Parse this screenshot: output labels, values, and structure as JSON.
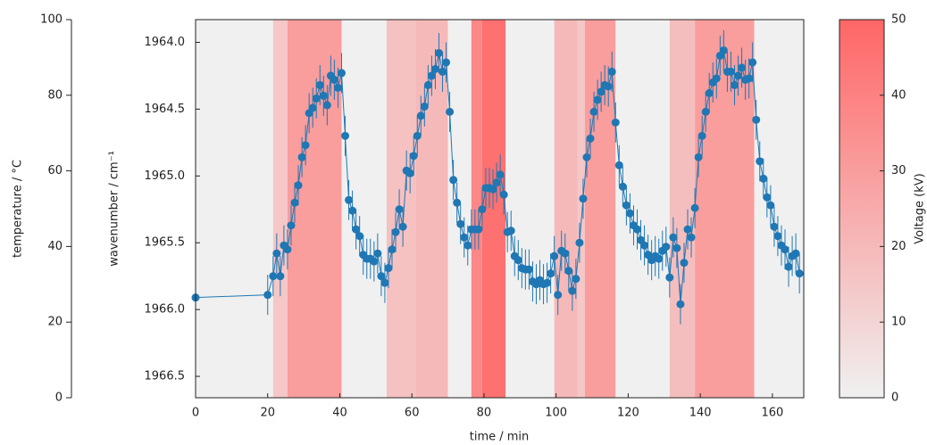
{
  "chart_data": {
    "type": "scatter",
    "xlabel": "time / min",
    "ylabel": "wavenumber / cm⁻¹",
    "xlim": [
      0,
      168.7
    ],
    "xticks": [
      0,
      20,
      40,
      60,
      80,
      100,
      120,
      140,
      160
    ],
    "ylim": [
      1963.83,
      1966.66
    ],
    "y_inverted": true,
    "yticks": [
      {
        "value": 1964,
        "label": "1964.0"
      },
      1964.5,
      {
        "value": 1965,
        "label": "1965.0"
      },
      1965.5,
      {
        "value": 1966,
        "label": "1966.0"
      },
      1966.5
    ],
    "temperature_axis": {
      "label": "temperature / °C",
      "lim": [
        0,
        100
      ],
      "ticks": [
        0,
        20,
        40,
        60,
        80,
        100
      ]
    },
    "colorbar": {
      "label": "Voltage (kV)",
      "lim": [
        0,
        50
      ],
      "ticks": [
        0,
        10,
        20,
        30,
        40,
        50
      ],
      "colors": [
        "#f0f0f0",
        "#ff6666"
      ]
    },
    "bands": [
      {
        "start": 0,
        "end": 21.5,
        "voltage": 0
      },
      {
        "start": 21.5,
        "end": 25.5,
        "voltage": 15
      },
      {
        "start": 25.5,
        "end": 40.5,
        "voltage": 30
      },
      {
        "start": 40.5,
        "end": 53,
        "voltage": 0
      },
      {
        "start": 53,
        "end": 61,
        "voltage": 17
      },
      {
        "start": 61,
        "end": 70,
        "voltage": 20
      },
      {
        "start": 70,
        "end": 76.5,
        "voltage": 0
      },
      {
        "start": 76.5,
        "end": 79.5,
        "voltage": 38
      },
      {
        "start": 79.5,
        "end": 86,
        "voltage": 46
      },
      {
        "start": 86,
        "end": 99.5,
        "voltage": 0
      },
      {
        "start": 99.5,
        "end": 106,
        "voltage": 20
      },
      {
        "start": 106,
        "end": 108,
        "voltage": 15
      },
      {
        "start": 108,
        "end": 116.5,
        "voltage": 30
      },
      {
        "start": 116.5,
        "end": 131.5,
        "voltage": 0
      },
      {
        "start": 131.5,
        "end": 138.5,
        "voltage": 18
      },
      {
        "start": 138.5,
        "end": 155,
        "voltage": 30
      },
      {
        "start": 155,
        "end": 168.7,
        "voltage": 0
      }
    ],
    "series": [
      {
        "color": "#1f77b4",
        "yerr": 0.15,
        "x": [
          0,
          20,
          21.5,
          22.5,
          23.5,
          24.5,
          25.5,
          26.5,
          27.5,
          28.5,
          29.5,
          30.5,
          31.5,
          32.5,
          33.5,
          34.5,
          35.5,
          36.5,
          37.5,
          38.5,
          39.5,
          40.5,
          41.5,
          42.5,
          43.5,
          44.5,
          45.5,
          46.5,
          47.5,
          48.5,
          49.5,
          50.5,
          51.5,
          52.5,
          53.5,
          54.5,
          55.5,
          56.5,
          57.5,
          58.5,
          59.5,
          60.5,
          61.5,
          62.5,
          63.5,
          64.5,
          65.5,
          66.5,
          67.5,
          68.5,
          69.5,
          70.5,
          71.5,
          72.5,
          73.5,
          74.5,
          75.5,
          76.5,
          77.5,
          78.5,
          79.5,
          80.5,
          81.5,
          82.5,
          83.5,
          84.5,
          85.5,
          86.5,
          87.5,
          88.5,
          89.5,
          90.5,
          91.5,
          92.5,
          93.5,
          94.5,
          95.5,
          96.5,
          97.5,
          98.5,
          99.5,
          100.5,
          101.5,
          102.5,
          103.5,
          104.5,
          105.5,
          106.5,
          107.5,
          108.5,
          109.5,
          110.5,
          111.5,
          112.5,
          113.5,
          114.5,
          115.5,
          116.5,
          117.5,
          118.5,
          119.5,
          120.5,
          121.5,
          122.5,
          123.5,
          124.5,
          125.5,
          126.5,
          127.5,
          128.5,
          129.5,
          130.5,
          131.5,
          132.5,
          133.5,
          134.5,
          135.5,
          136.5,
          137.5,
          138.5,
          139.5,
          140.5,
          141.5,
          142.5,
          143.5,
          144.5,
          145.5,
          146.5,
          147.5,
          148.5,
          149.5,
          150.5,
          151.5,
          152.5,
          153.5,
          154.5,
          155.5,
          156.5,
          157.5,
          158.5,
          159.5,
          160.5,
          161.5,
          162.5,
          163.5,
          164.5,
          165.5,
          166.5,
          167.5
        ],
        "values": [
          1965.91,
          1965.89,
          1965.75,
          1965.58,
          1965.75,
          1965.52,
          1965.55,
          1965.37,
          1965.2,
          1965.07,
          1964.86,
          1964.77,
          1964.53,
          1964.49,
          1964.42,
          1964.32,
          1964.4,
          1964.47,
          1964.25,
          1964.28,
          1964.34,
          1964.23,
          1964.7,
          1965.18,
          1965.26,
          1965.4,
          1965.45,
          1965.59,
          1965.62,
          1965.62,
          1965.64,
          1965.58,
          1965.75,
          1965.8,
          1965.69,
          1965.55,
          1965.42,
          1965.25,
          1965.38,
          1964.96,
          1964.98,
          1964.85,
          1964.7,
          1964.55,
          1964.48,
          1964.32,
          1964.25,
          1964.2,
          1964.08,
          1964.22,
          1964.15,
          1964.52,
          1965.03,
          1965.2,
          1965.36,
          1965.46,
          1965.52,
          1965.4,
          1965.4,
          1965.4,
          1965.25,
          1965.09,
          1965.09,
          1965.1,
          1965.05,
          1964.99,
          1965.14,
          1965.42,
          1965.41,
          1965.6,
          1965.63,
          1965.69,
          1965.7,
          1965.7,
          1965.79,
          1965.81,
          1965.78,
          1965.81,
          1965.8,
          1965.73,
          1965.6,
          1965.89,
          1965.56,
          1965.58,
          1965.71,
          1965.86,
          1965.77,
          1965.5,
          1965.17,
          1964.86,
          1964.72,
          1964.52,
          1964.43,
          1964.37,
          1964.32,
          1964.33,
          1964.22,
          1964.6,
          1964.92,
          1965.08,
          1965.22,
          1965.28,
          1965.37,
          1965.4,
          1965.48,
          1965.52,
          1965.59,
          1965.63,
          1965.6,
          1965.62,
          1965.56,
          1965.53,
          1965.76,
          1965.46,
          1965.54,
          1965.96,
          1965.65,
          1965.4,
          1965.46,
          1965.24,
          1964.86,
          1964.7,
          1964.52,
          1964.38,
          1964.3,
          1964.27,
          1964.1,
          1964.06,
          1964.22,
          1964.22,
          1964.32,
          1964.25,
          1964.19,
          1964.28,
          1964.27,
          1964.15,
          1964.58,
          1964.89,
          1965.02,
          1965.16,
          1965.22,
          1965.38,
          1965.45,
          1965.52,
          1965.55,
          1965.68,
          1965.6,
          1965.58,
          1965.73
        ]
      }
    ]
  }
}
